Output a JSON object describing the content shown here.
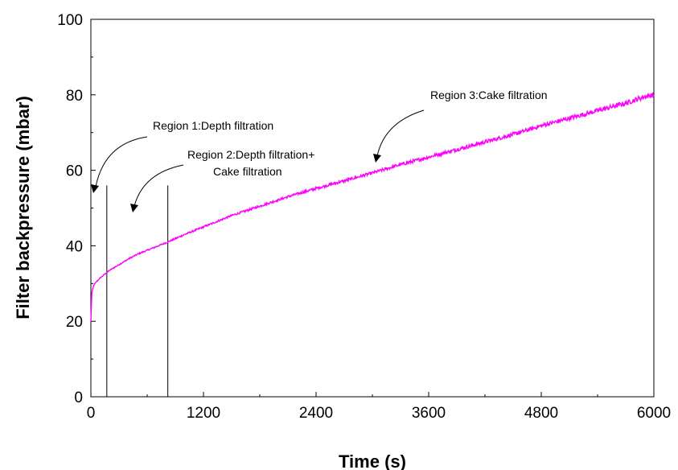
{
  "chart_data": {
    "type": "line",
    "title": "",
    "xlabel": "Time (s)",
    "ylabel": "Filter backpressure (mbar)",
    "xlim": [
      0,
      6000
    ],
    "ylim": [
      0,
      100
    ],
    "x_ticks": [
      0,
      1200,
      2400,
      3600,
      4800,
      6000
    ],
    "y_ticks": [
      0,
      20,
      40,
      60,
      80,
      100
    ],
    "grid": false,
    "series": [
      {
        "color": "#ff00ff",
        "x": [
          0,
          10,
          30,
          60,
          100,
          150,
          200,
          300,
          400,
          500,
          600,
          700,
          820,
          1000,
          1200,
          1500,
          1800,
          2100,
          2400,
          2700,
          3000,
          3300,
          3600,
          3900,
          4200,
          4500,
          4800,
          5100,
          5400,
          5700,
          5900,
          6000
        ],
        "y": [
          20,
          27.5,
          29.5,
          30.5,
          31.5,
          32.5,
          33.5,
          35,
          36.5,
          37.8,
          38.8,
          39.8,
          41,
          43,
          45,
          48,
          50.5,
          53,
          55.2,
          57.2,
          59.3,
          61.5,
          63.5,
          65.5,
          67.5,
          69.5,
          71.8,
          73.8,
          75.8,
          77.8,
          79.5,
          80
        ]
      }
    ],
    "region_lines_x": [
      170,
      820
    ],
    "annotations": [
      {
        "id": "region-1",
        "lines": [
          "Region 1:Depth filtration"
        ]
      },
      {
        "id": "region-2",
        "lines": [
          "Region 2:Depth filtration+",
          "Cake filtration"
        ]
      },
      {
        "id": "region-3",
        "lines": [
          "Region 3:Cake filtration"
        ]
      }
    ]
  }
}
